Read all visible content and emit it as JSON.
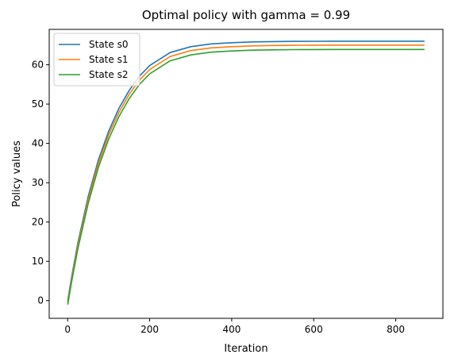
{
  "chart_data": {
    "type": "line",
    "title": "Optimal policy with gamma = 0.99",
    "xlabel": "Iteration",
    "ylabel": "Policy values",
    "xlim": [
      -45,
      915
    ],
    "ylim": [
      -4.5,
      69
    ],
    "xticks": [
      0,
      200,
      400,
      600,
      800
    ],
    "yticks": [
      0,
      10,
      20,
      30,
      40,
      50,
      60
    ],
    "grid": false,
    "legend": "upper-left",
    "series": [
      {
        "name": "State s0",
        "color": "#1f77b4",
        "x": [
          0,
          10,
          25,
          50,
          75,
          100,
          125,
          150,
          175,
          200,
          250,
          300,
          350,
          400,
          450,
          500,
          550,
          600,
          650,
          700,
          750,
          800,
          870
        ],
        "y": [
          0,
          6.2,
          14.8,
          26.5,
          35.8,
          43.1,
          48.9,
          53.5,
          57.1,
          59.8,
          63.1,
          64.6,
          65.3,
          65.6,
          65.8,
          65.9,
          65.95,
          65.98,
          66.0,
          66.0,
          66.0,
          66.0,
          66.0
        ]
      },
      {
        "name": "State s1",
        "color": "#ff7f0e",
        "x": [
          0,
          10,
          25,
          50,
          75,
          100,
          125,
          150,
          175,
          200,
          250,
          300,
          350,
          400,
          450,
          500,
          550,
          600,
          650,
          700,
          750,
          800,
          870
        ],
        "y": [
          -0.5,
          5.6,
          14.1,
          25.6,
          34.9,
          42.2,
          47.9,
          52.5,
          56.1,
          58.8,
          62.1,
          63.6,
          64.3,
          64.6,
          64.8,
          64.9,
          64.95,
          64.98,
          65.0,
          65.0,
          65.0,
          65.0,
          65.0
        ]
      },
      {
        "name": "State s2",
        "color": "#2ca02c",
        "x": [
          0,
          10,
          25,
          50,
          75,
          100,
          125,
          150,
          175,
          200,
          250,
          300,
          350,
          400,
          450,
          500,
          550,
          600,
          650,
          700,
          750,
          800,
          870
        ],
        "y": [
          -1.0,
          5.0,
          13.3,
          24.7,
          33.9,
          41.1,
          46.8,
          51.4,
          55.0,
          57.7,
          61.0,
          62.5,
          63.2,
          63.5,
          63.7,
          63.8,
          63.85,
          63.88,
          63.9,
          63.9,
          63.9,
          63.9,
          63.9
        ]
      }
    ]
  }
}
